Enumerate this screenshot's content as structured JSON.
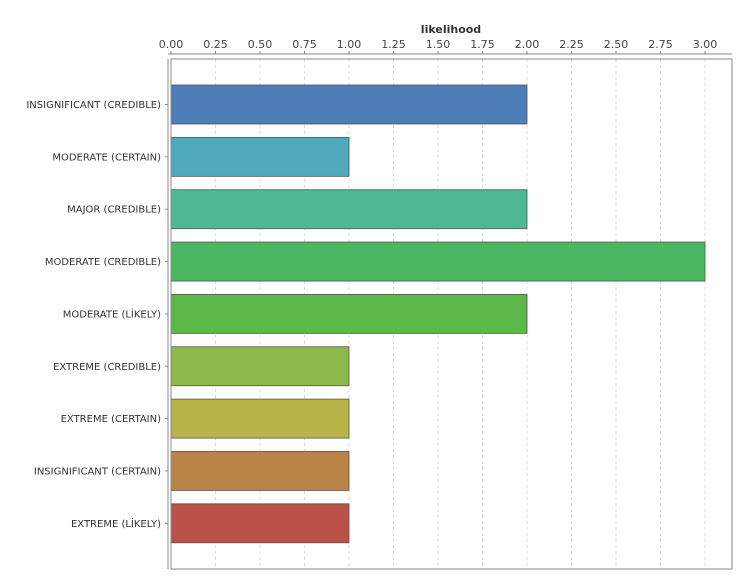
{
  "chart_data": {
    "type": "bar",
    "orientation": "horizontal",
    "xlabel": "likelihood",
    "xlabel_position": "top",
    "xlim": [
      0,
      3.0
    ],
    "xticks": [
      "0.00",
      "0.25",
      "0.50",
      "0.75",
      "1.00",
      "1.25",
      "1.50",
      "1.75",
      "2.00",
      "2.25",
      "2.50",
      "2.75",
      "3.00"
    ],
    "grid": true,
    "categories": [
      "INSIGNIFICANT (CREDIBLE)",
      "MODERATE (CERTAIN)",
      "MAJOR (CREDIBLE)",
      "MODERATE (CREDIBLE)",
      "MODERATE (LİKELY)",
      "EXTREME (CREDIBLE)",
      "EXTREME (CERTAIN)",
      "INSIGNIFICANT (CERTAIN)",
      "EXTREME (LİKELY)"
    ],
    "values": [
      2,
      1,
      2,
      3,
      2,
      1,
      1,
      1,
      1
    ],
    "colors": [
      "#4d7eb8",
      "#4eaabb",
      "#4db893",
      "#4ab862",
      "#5db84a",
      "#8db84a",
      "#b8b44a",
      "#bb8447",
      "#bb524a"
    ]
  }
}
